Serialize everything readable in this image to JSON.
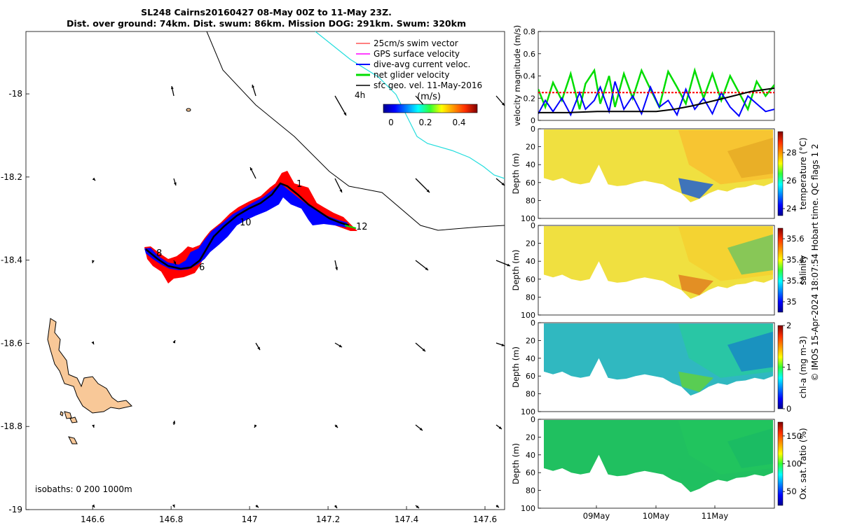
{
  "title": {
    "line1": "SL248 Cairns20160427 08-May 00Z to 11-May 23Z.",
    "line2": "Dist. over ground: 74km. Dist. swum: 86km. Mission DOG: 291km. Swum: 320km"
  },
  "side_caption": "© IMOS 15-Apr-2024 18:07:54 Hobart time. QC flags 1  2",
  "map": {
    "x_ticks": [
      "146.6",
      "146.8",
      "147",
      "147.2",
      "147.4",
      "147.6"
    ],
    "y_ticks": [
      "-18",
      "-18.2",
      "-18.4",
      "-18.6",
      "-18.8",
      "-19"
    ],
    "xlim": [
      146.43,
      147.65
    ],
    "ylim": [
      -19.0,
      -17.85
    ],
    "isobath_text": "isobaths: 0   200   1000m",
    "colorbar_title": "(m/s)",
    "colorbar_ticks": [
      "0",
      "0.2",
      "0.4"
    ],
    "time_label": "4h",
    "legend": [
      {
        "label": "25cm/s swim vector",
        "color": "#ff0000"
      },
      {
        "label": "GPS surface velocity",
        "color": "#ff00ff"
      },
      {
        "label": "dive-avg current veloc.",
        "color": "#0000ff"
      },
      {
        "label": "net glider velocity",
        "color": "#00dd00"
      },
      {
        "label": "sfc geo. vel. 11-May-2016",
        "color": "#000000"
      }
    ],
    "track_labels": [
      "8",
      "6",
      "10",
      "1",
      "12"
    ]
  },
  "chart_data": [
    {
      "type": "line",
      "ylabel": "velocity magnitude (m/s)",
      "ylim": [
        0,
        0.8
      ],
      "y_ticks": [
        "0",
        "0.2",
        "0.4",
        "0.6",
        "0.8"
      ],
      "xlim": [
        0,
        4
      ],
      "series": [
        {
          "color": "#00dd00",
          "x": [
            0,
            0.12,
            0.25,
            0.4,
            0.55,
            0.7,
            0.8,
            0.95,
            1.05,
            1.2,
            1.3,
            1.45,
            1.6,
            1.75,
            1.9,
            2.05,
            2.2,
            2.35,
            2.5,
            2.65,
            2.8,
            2.95,
            3.1,
            3.25,
            3.4,
            3.55,
            3.7,
            3.85,
            4.0
          ],
          "values": [
            0.28,
            0.12,
            0.34,
            0.18,
            0.42,
            0.1,
            0.33,
            0.45,
            0.15,
            0.4,
            0.12,
            0.42,
            0.2,
            0.45,
            0.28,
            0.12,
            0.44,
            0.3,
            0.15,
            0.45,
            0.2,
            0.42,
            0.18,
            0.4,
            0.25,
            0.1,
            0.35,
            0.22,
            0.32
          ]
        },
        {
          "color": "#0000ff",
          "x": [
            0,
            0.12,
            0.25,
            0.4,
            0.55,
            0.7,
            0.8,
            0.95,
            1.05,
            1.2,
            1.3,
            1.45,
            1.6,
            1.75,
            1.9,
            2.05,
            2.2,
            2.35,
            2.5,
            2.65,
            2.8,
            2.95,
            3.1,
            3.25,
            3.4,
            3.55,
            3.7,
            3.85,
            4.0
          ],
          "values": [
            0.06,
            0.18,
            0.08,
            0.2,
            0.05,
            0.25,
            0.1,
            0.18,
            0.3,
            0.08,
            0.35,
            0.1,
            0.22,
            0.06,
            0.3,
            0.12,
            0.18,
            0.05,
            0.28,
            0.1,
            0.2,
            0.06,
            0.25,
            0.12,
            0.04,
            0.22,
            0.15,
            0.08,
            0.1
          ]
        },
        {
          "color": "#ff0000",
          "x": [
            0,
            4
          ],
          "values": [
            0.25,
            0.25
          ]
        },
        {
          "color": "#000000",
          "x": [
            0,
            0.5,
            1,
            1.5,
            2,
            2.3,
            2.6,
            3,
            3.3,
            3.6,
            4
          ],
          "values": [
            0.07,
            0.07,
            0.08,
            0.08,
            0.08,
            0.1,
            0.13,
            0.18,
            0.22,
            0.26,
            0.29
          ]
        }
      ]
    },
    {
      "type": "heatmap",
      "ylabel": "Depth (m)",
      "clabel": "temperature (°C)",
      "y_ticks": [
        "0",
        "20",
        "40",
        "60",
        "80",
        "100"
      ],
      "c_ticks": [
        "28",
        "26",
        "24"
      ],
      "clim": [
        23.5,
        29.5
      ]
    },
    {
      "type": "heatmap",
      "ylabel": "Depth (m)",
      "clabel": "salinity",
      "y_ticks": [
        "0",
        "20",
        "40",
        "60",
        "80",
        "100"
      ],
      "c_ticks": [
        "35.6",
        "35.4",
        "35.2",
        "35"
      ],
      "clim": [
        34.9,
        35.7
      ]
    },
    {
      "type": "heatmap",
      "ylabel": "Depth (m)",
      "clabel": "chl-a (mg m-3)",
      "y_ticks": [
        "0",
        "20",
        "40",
        "60",
        "80",
        "100"
      ],
      "c_ticks": [
        "2",
        "1",
        "0"
      ],
      "clim": [
        0,
        2
      ]
    },
    {
      "type": "heatmap",
      "ylabel": "Depth (m)",
      "clabel": "Ox. sat. ratio (%)",
      "y_ticks": [
        "0",
        "20",
        "40",
        "60",
        "80",
        "100"
      ],
      "c_ticks": [
        "150",
        "100",
        "50"
      ],
      "clim": [
        25,
        175
      ],
      "x_ticks": [
        "09May",
        "10May",
        "11May"
      ]
    }
  ],
  "colors": {
    "track_black": "#000000",
    "track_red": "#ff0000",
    "track_blue": "#0000ff",
    "land": "#f8c898",
    "cyan_line": "#22dddd"
  }
}
